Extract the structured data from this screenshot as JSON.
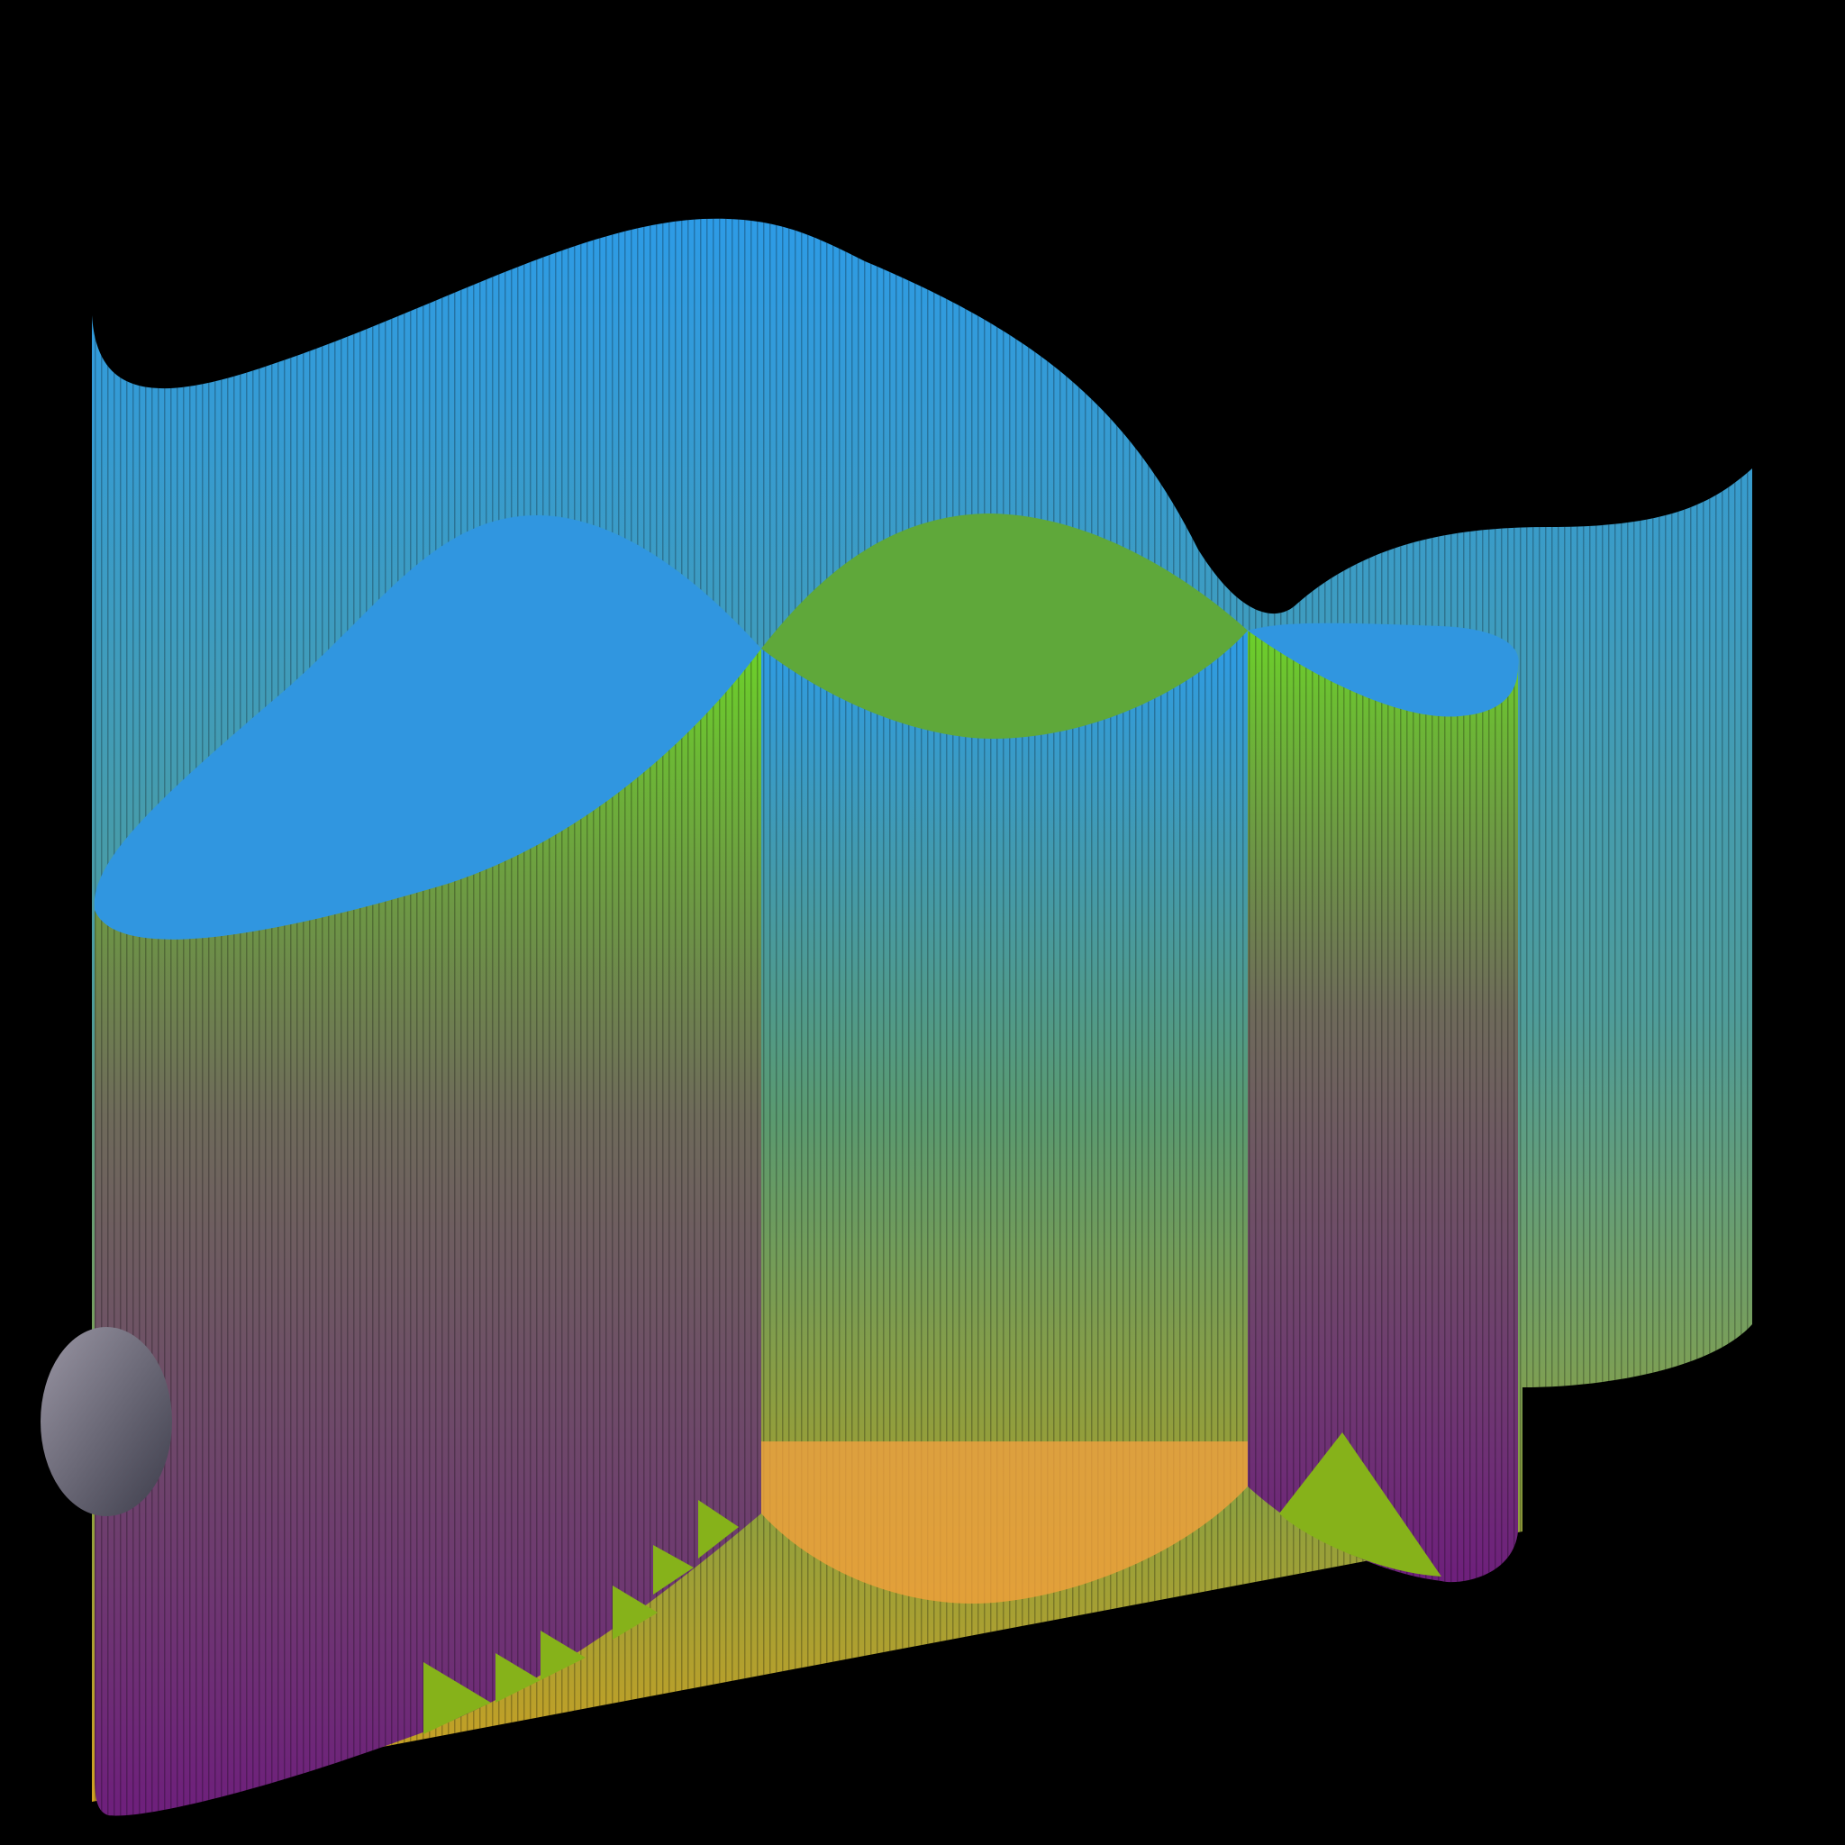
{
  "scene": {
    "background": "#000000",
    "colors": {
      "back_top": "#2d9be6",
      "back_mid": "#5f9a7a",
      "back_bottom": "#c9a21e",
      "front_top": "#6cd02a",
      "front_mid": "#6e6a5a",
      "front_bottom": "#6e1f7c",
      "cap": "#3096e0",
      "floor_green": "#86b21a",
      "floor_orange": "#efa040",
      "sphere": "#7d7a88"
    }
  }
}
